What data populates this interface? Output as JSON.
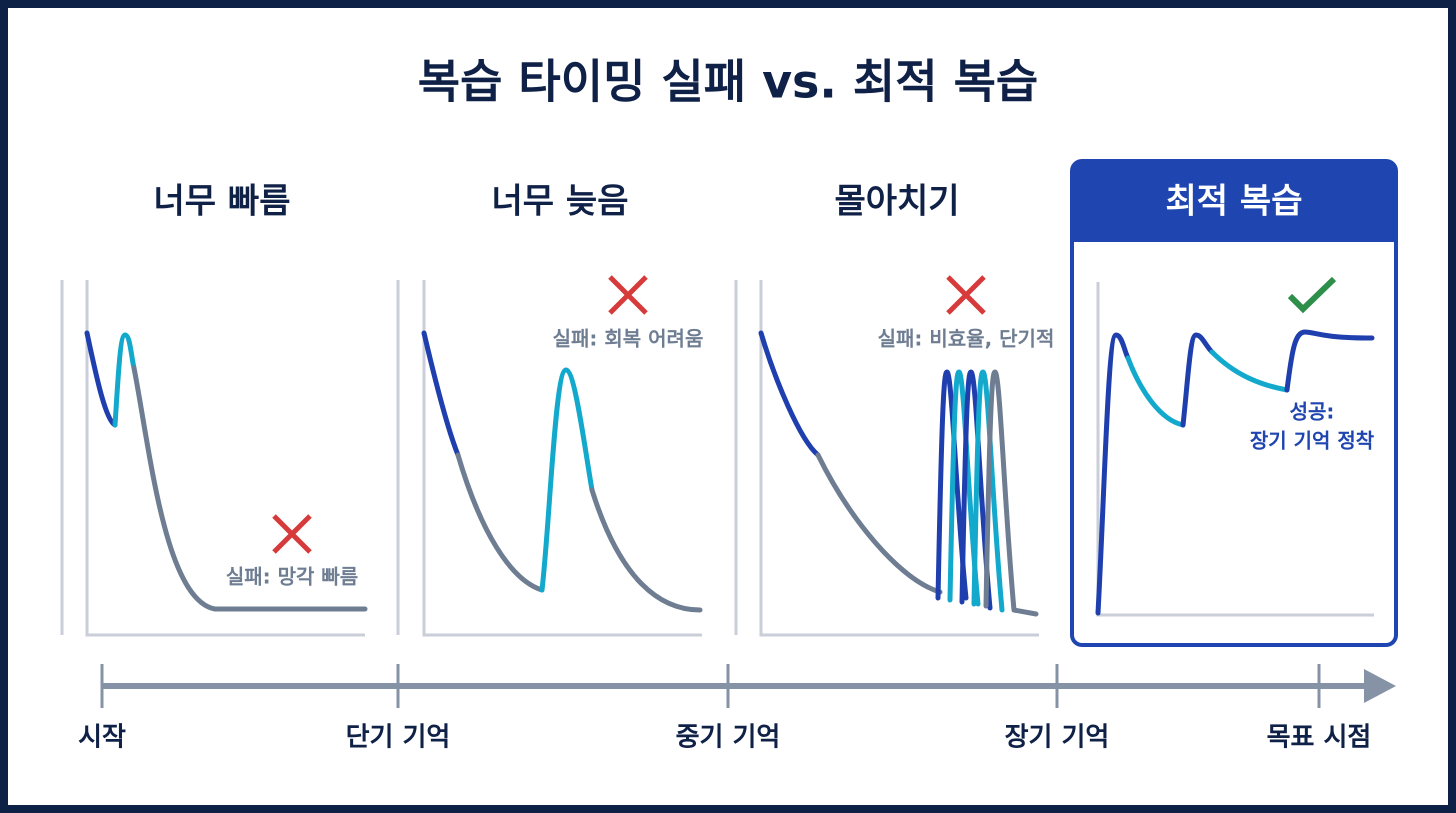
{
  "title": "복습 타이밍 실패 vs. 최적 복습",
  "panels": [
    {
      "heading": "너무 빠름",
      "note": [
        "실패: 망각 빠름"
      ]
    },
    {
      "heading": "너무 늦음",
      "note": [
        "실패: 회복 어려움"
      ]
    },
    {
      "heading": "몰아치기",
      "note": [
        "실패: 비효율, 단기적"
      ]
    },
    {
      "heading": "최적 복습",
      "note": [
        "성공:",
        "장기 기억 정착"
      ]
    }
  ],
  "timeline": [
    "시작",
    "단기 기억",
    "중기 기억",
    "장기 기억",
    "목표 시점"
  ]
}
